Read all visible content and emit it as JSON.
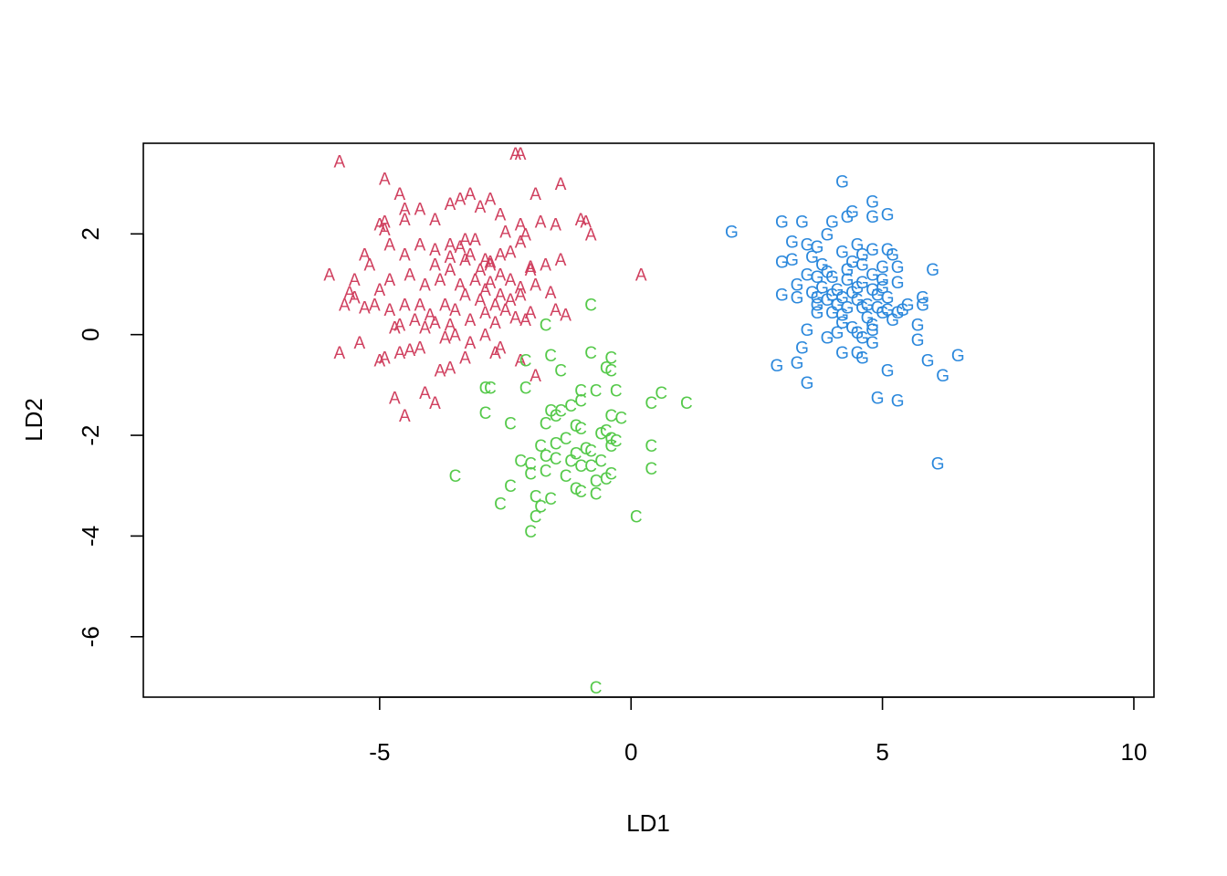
{
  "chart_data": {
    "type": "scatter",
    "title": "",
    "xlabel": "LD1",
    "ylabel": "LD2",
    "xlim": [
      -9.7,
      10.4
    ],
    "ylim": [
      -7.2,
      3.8
    ],
    "xticks": [
      -5,
      0,
      5,
      10
    ],
    "yticks": [
      -6,
      -4,
      -2,
      0,
      2
    ],
    "xtick_labels": [
      "-5",
      "0",
      "5",
      "10"
    ],
    "ytick_labels": [
      "-6",
      "-4",
      "-2",
      "0",
      "2"
    ],
    "grid": false,
    "legend": "none",
    "series": [
      {
        "marker": "A",
        "color": "#d0405f",
        "points": [
          [
            -5.8,
            3.45
          ],
          [
            -4.9,
            3.1
          ],
          [
            -4.6,
            2.8
          ],
          [
            -4.5,
            2.5
          ],
          [
            -4.2,
            2.5
          ],
          [
            -3.9,
            2.3
          ],
          [
            -3.6,
            2.6
          ],
          [
            -3.4,
            2.7
          ],
          [
            -3.2,
            2.8
          ],
          [
            -3.0,
            2.55
          ],
          [
            -2.8,
            2.7
          ],
          [
            -2.6,
            2.4
          ],
          [
            -2.3,
            3.6
          ],
          [
            -2.2,
            3.6
          ],
          [
            -1.9,
            2.8
          ],
          [
            -1.4,
            3.0
          ],
          [
            -1.0,
            2.3
          ],
          [
            -0.8,
            2.0
          ],
          [
            -1.5,
            2.2
          ],
          [
            -1.8,
            2.25
          ],
          [
            -2.2,
            2.2
          ],
          [
            -2.1,
            2.0
          ],
          [
            -2.0,
            1.3
          ],
          [
            -1.7,
            1.4
          ],
          [
            -1.4,
            1.5
          ],
          [
            -1.9,
            1.0
          ],
          [
            -1.6,
            0.85
          ],
          [
            -1.3,
            0.4
          ],
          [
            -1.5,
            0.5
          ],
          [
            -2.0,
            0.45
          ],
          [
            -2.3,
            0.35
          ],
          [
            -2.5,
            0.5
          ],
          [
            -2.2,
            0.8
          ],
          [
            -2.4,
            1.1
          ],
          [
            -2.6,
            1.2
          ],
          [
            -2.8,
            1.4
          ],
          [
            -2.9,
            1.5
          ],
          [
            -3.1,
            1.9
          ],
          [
            -3.3,
            1.9
          ],
          [
            -3.6,
            1.8
          ],
          [
            -3.9,
            1.7
          ],
          [
            -4.2,
            1.8
          ],
          [
            -4.5,
            1.6
          ],
          [
            -4.8,
            1.8
          ],
          [
            -5.0,
            2.2
          ],
          [
            -4.9,
            2.1
          ],
          [
            -5.3,
            1.6
          ],
          [
            -5.2,
            1.4
          ],
          [
            -5.5,
            1.1
          ],
          [
            -5.6,
            0.85
          ],
          [
            -5.5,
            0.75
          ],
          [
            -5.7,
            0.6
          ],
          [
            -5.1,
            0.6
          ],
          [
            -4.8,
            0.5
          ],
          [
            -4.5,
            0.6
          ],
          [
            -4.2,
            0.6
          ],
          [
            -4.0,
            0.4
          ],
          [
            -3.7,
            0.6
          ],
          [
            -3.5,
            0.5
          ],
          [
            -3.3,
            0.8
          ],
          [
            -3.0,
            0.7
          ],
          [
            -2.9,
            0.45
          ],
          [
            -3.2,
            0.3
          ],
          [
            -3.6,
            0.2
          ],
          [
            -3.9,
            0.25
          ],
          [
            -4.3,
            0.3
          ],
          [
            -4.6,
            0.2
          ],
          [
            -4.7,
            0.15
          ],
          [
            -5.0,
            0.9
          ],
          [
            -4.8,
            1.1
          ],
          [
            -4.4,
            1.2
          ],
          [
            -4.1,
            1.0
          ],
          [
            -3.8,
            1.1
          ],
          [
            -3.6,
            1.3
          ],
          [
            -3.4,
            1.0
          ],
          [
            -3.1,
            1.1
          ],
          [
            -2.9,
            0.9
          ],
          [
            -2.7,
            0.6
          ],
          [
            -2.4,
            0.7
          ],
          [
            -2.2,
            0.95
          ],
          [
            -3.9,
            1.4
          ],
          [
            -3.6,
            1.55
          ],
          [
            -3.3,
            1.5
          ],
          [
            -3.0,
            1.3
          ],
          [
            -2.8,
            1.05
          ],
          [
            -2.6,
            0.8
          ],
          [
            -2.1,
            0.3
          ],
          [
            -3.5,
            0.0
          ],
          [
            -3.2,
            -0.15
          ],
          [
            -2.6,
            -0.25
          ],
          [
            -4.2,
            -0.25
          ],
          [
            -4.4,
            -0.3
          ],
          [
            -4.6,
            -0.35
          ],
          [
            -4.9,
            -0.45
          ],
          [
            -5.0,
            -0.5
          ],
          [
            -5.8,
            -0.35
          ],
          [
            -5.4,
            -0.15
          ],
          [
            -3.8,
            -0.7
          ],
          [
            -3.3,
            -0.45
          ],
          [
            -2.7,
            -0.35
          ],
          [
            -2.2,
            -0.5
          ],
          [
            -1.9,
            -0.8
          ],
          [
            -4.7,
            -1.25
          ],
          [
            -4.1,
            -1.15
          ],
          [
            -3.9,
            -1.35
          ],
          [
            -4.5,
            -1.6
          ],
          [
            -3.6,
            -0.65
          ],
          [
            -6.0,
            1.2
          ],
          [
            -5.3,
            0.55
          ],
          [
            -4.1,
            0.15
          ],
          [
            -2.7,
            0.25
          ],
          [
            -2.9,
            0.0
          ],
          [
            -3.7,
            -0.05
          ],
          [
            -2.4,
            1.65
          ],
          [
            -2.2,
            1.85
          ],
          [
            -2.5,
            2.05
          ],
          [
            0.2,
            1.2
          ],
          [
            -0.9,
            2.25
          ],
          [
            -4.5,
            2.3
          ],
          [
            -4.9,
            2.25
          ],
          [
            -2.6,
            1.6
          ],
          [
            -2.0,
            1.35
          ],
          [
            -3.4,
            1.75
          ],
          [
            -2.8,
            1.45
          ],
          [
            -3.2,
            1.6
          ]
        ]
      },
      {
        "marker": "C",
        "color": "#55c94a",
        "points": [
          [
            -0.8,
            0.6
          ],
          [
            -1.7,
            0.2
          ],
          [
            -1.6,
            -0.4
          ],
          [
            -0.8,
            -0.35
          ],
          [
            -2.1,
            -0.5
          ],
          [
            -1.4,
            -0.7
          ],
          [
            -0.4,
            -0.45
          ],
          [
            -0.5,
            -0.65
          ],
          [
            -0.4,
            -0.7
          ],
          [
            -2.9,
            -1.05
          ],
          [
            -2.8,
            -1.05
          ],
          [
            -2.1,
            -1.05
          ],
          [
            -1.0,
            -1.1
          ],
          [
            -0.7,
            -1.1
          ],
          [
            -0.3,
            -1.1
          ],
          [
            0.6,
            -1.15
          ],
          [
            0.4,
            -1.35
          ],
          [
            1.1,
            -1.35
          ],
          [
            -1.2,
            -1.4
          ],
          [
            -1.4,
            -1.5
          ],
          [
            -1.6,
            -1.5
          ],
          [
            -1.0,
            -1.3
          ],
          [
            -2.9,
            -1.55
          ],
          [
            -2.4,
            -1.75
          ],
          [
            -1.7,
            -1.75
          ],
          [
            -1.5,
            -1.6
          ],
          [
            -1.1,
            -1.8
          ],
          [
            -0.4,
            -1.6
          ],
          [
            -0.5,
            -1.9
          ],
          [
            -0.4,
            -2.05
          ],
          [
            -0.3,
            -2.1
          ],
          [
            -0.4,
            -2.2
          ],
          [
            -0.6,
            -1.95
          ],
          [
            -1.0,
            -1.85
          ],
          [
            -1.3,
            -2.05
          ],
          [
            -1.5,
            -2.15
          ],
          [
            -1.8,
            -2.2
          ],
          [
            -1.1,
            -2.35
          ],
          [
            -0.9,
            -2.25
          ],
          [
            -1.2,
            -2.5
          ],
          [
            -1.5,
            -2.45
          ],
          [
            -1.7,
            -2.4
          ],
          [
            -2.0,
            -2.55
          ],
          [
            -2.2,
            -2.5
          ],
          [
            -1.3,
            -2.8
          ],
          [
            -1.0,
            -2.6
          ],
          [
            -0.8,
            -2.6
          ],
          [
            -0.6,
            -2.5
          ],
          [
            -0.4,
            -2.75
          ],
          [
            -0.5,
            -2.85
          ],
          [
            -1.7,
            -2.7
          ],
          [
            -2.0,
            -2.75
          ],
          [
            -2.4,
            -3.0
          ],
          [
            -1.9,
            -3.2
          ],
          [
            -1.6,
            -3.25
          ],
          [
            -1.1,
            -3.05
          ],
          [
            -1.0,
            -3.1
          ],
          [
            -0.7,
            -3.15
          ],
          [
            -0.7,
            -2.9
          ],
          [
            -1.8,
            -3.4
          ],
          [
            -2.6,
            -3.35
          ],
          [
            -1.9,
            -3.6
          ],
          [
            -2.0,
            -3.9
          ],
          [
            -3.5,
            -2.8
          ],
          [
            0.1,
            -3.6
          ],
          [
            0.4,
            -2.2
          ],
          [
            0.4,
            -2.65
          ],
          [
            -0.2,
            -1.65
          ],
          [
            -0.8,
            -2.3
          ],
          [
            -0.7,
            -7.0
          ]
        ]
      },
      {
        "marker": "G",
        "color": "#2b88dc",
        "points": [
          [
            4.2,
            3.05
          ],
          [
            4.8,
            2.65
          ],
          [
            4.4,
            2.45
          ],
          [
            5.1,
            2.4
          ],
          [
            3.0,
            2.25
          ],
          [
            3.4,
            2.25
          ],
          [
            4.0,
            2.25
          ],
          [
            4.3,
            2.35
          ],
          [
            4.8,
            2.35
          ],
          [
            2.0,
            2.05
          ],
          [
            3.9,
            2.0
          ],
          [
            3.2,
            1.85
          ],
          [
            3.5,
            1.8
          ],
          [
            3.7,
            1.75
          ],
          [
            4.5,
            1.8
          ],
          [
            4.8,
            1.7
          ],
          [
            5.1,
            1.7
          ],
          [
            5.2,
            1.6
          ],
          [
            4.2,
            1.65
          ],
          [
            3.6,
            1.55
          ],
          [
            3.2,
            1.5
          ],
          [
            3.0,
            1.45
          ],
          [
            3.8,
            1.4
          ],
          [
            4.4,
            1.45
          ],
          [
            4.6,
            1.4
          ],
          [
            5.0,
            1.35
          ],
          [
            5.3,
            1.35
          ],
          [
            6.0,
            1.3
          ],
          [
            3.5,
            1.2
          ],
          [
            3.7,
            1.15
          ],
          [
            4.0,
            1.15
          ],
          [
            4.3,
            1.1
          ],
          [
            4.8,
            1.2
          ],
          [
            5.0,
            1.1
          ],
          [
            5.3,
            1.05
          ],
          [
            3.3,
            1.0
          ],
          [
            3.8,
            0.95
          ],
          [
            4.1,
            0.9
          ],
          [
            4.5,
            0.95
          ],
          [
            4.8,
            0.9
          ],
          [
            3.0,
            0.8
          ],
          [
            3.3,
            0.75
          ],
          [
            3.7,
            0.75
          ],
          [
            4.0,
            0.8
          ],
          [
            4.2,
            0.75
          ],
          [
            4.5,
            0.7
          ],
          [
            4.9,
            0.8
          ],
          [
            5.1,
            0.75
          ],
          [
            5.8,
            0.75
          ],
          [
            3.7,
            0.6
          ],
          [
            4.1,
            0.6
          ],
          [
            4.3,
            0.55
          ],
          [
            4.6,
            0.55
          ],
          [
            4.9,
            0.55
          ],
          [
            5.1,
            0.5
          ],
          [
            5.4,
            0.5
          ],
          [
            5.8,
            0.6
          ],
          [
            3.7,
            0.45
          ],
          [
            4.2,
            0.4
          ],
          [
            4.7,
            0.35
          ],
          [
            5.0,
            0.45
          ],
          [
            5.3,
            0.45
          ],
          [
            4.2,
            0.25
          ],
          [
            4.8,
            0.2
          ],
          [
            5.7,
            0.2
          ],
          [
            3.5,
            0.1
          ],
          [
            4.1,
            0.05
          ],
          [
            4.5,
            0.05
          ],
          [
            4.8,
            0.1
          ],
          [
            3.9,
            -0.05
          ],
          [
            4.6,
            -0.05
          ],
          [
            5.7,
            -0.1
          ],
          [
            3.4,
            -0.25
          ],
          [
            4.2,
            -0.35
          ],
          [
            4.5,
            -0.35
          ],
          [
            4.6,
            -0.45
          ],
          [
            5.9,
            -0.5
          ],
          [
            6.5,
            -0.4
          ],
          [
            2.9,
            -0.6
          ],
          [
            3.3,
            -0.55
          ],
          [
            5.1,
            -0.7
          ],
          [
            6.2,
            -0.8
          ],
          [
            3.5,
            -0.95
          ],
          [
            4.9,
            -1.25
          ],
          [
            5.3,
            -1.3
          ],
          [
            6.1,
            -2.55
          ],
          [
            4.6,
            1.05
          ],
          [
            4.3,
            1.3
          ],
          [
            3.9,
            0.7
          ],
          [
            4.7,
            0.6
          ],
          [
            5.0,
            0.95
          ],
          [
            4.4,
            0.85
          ],
          [
            5.2,
            0.3
          ],
          [
            4.0,
            0.45
          ],
          [
            3.6,
            0.85
          ],
          [
            4.8,
            -0.15
          ],
          [
            4.4,
            0.15
          ],
          [
            5.5,
            0.6
          ],
          [
            4.6,
            1.6
          ],
          [
            3.9,
            1.25
          ]
        ]
      }
    ]
  }
}
